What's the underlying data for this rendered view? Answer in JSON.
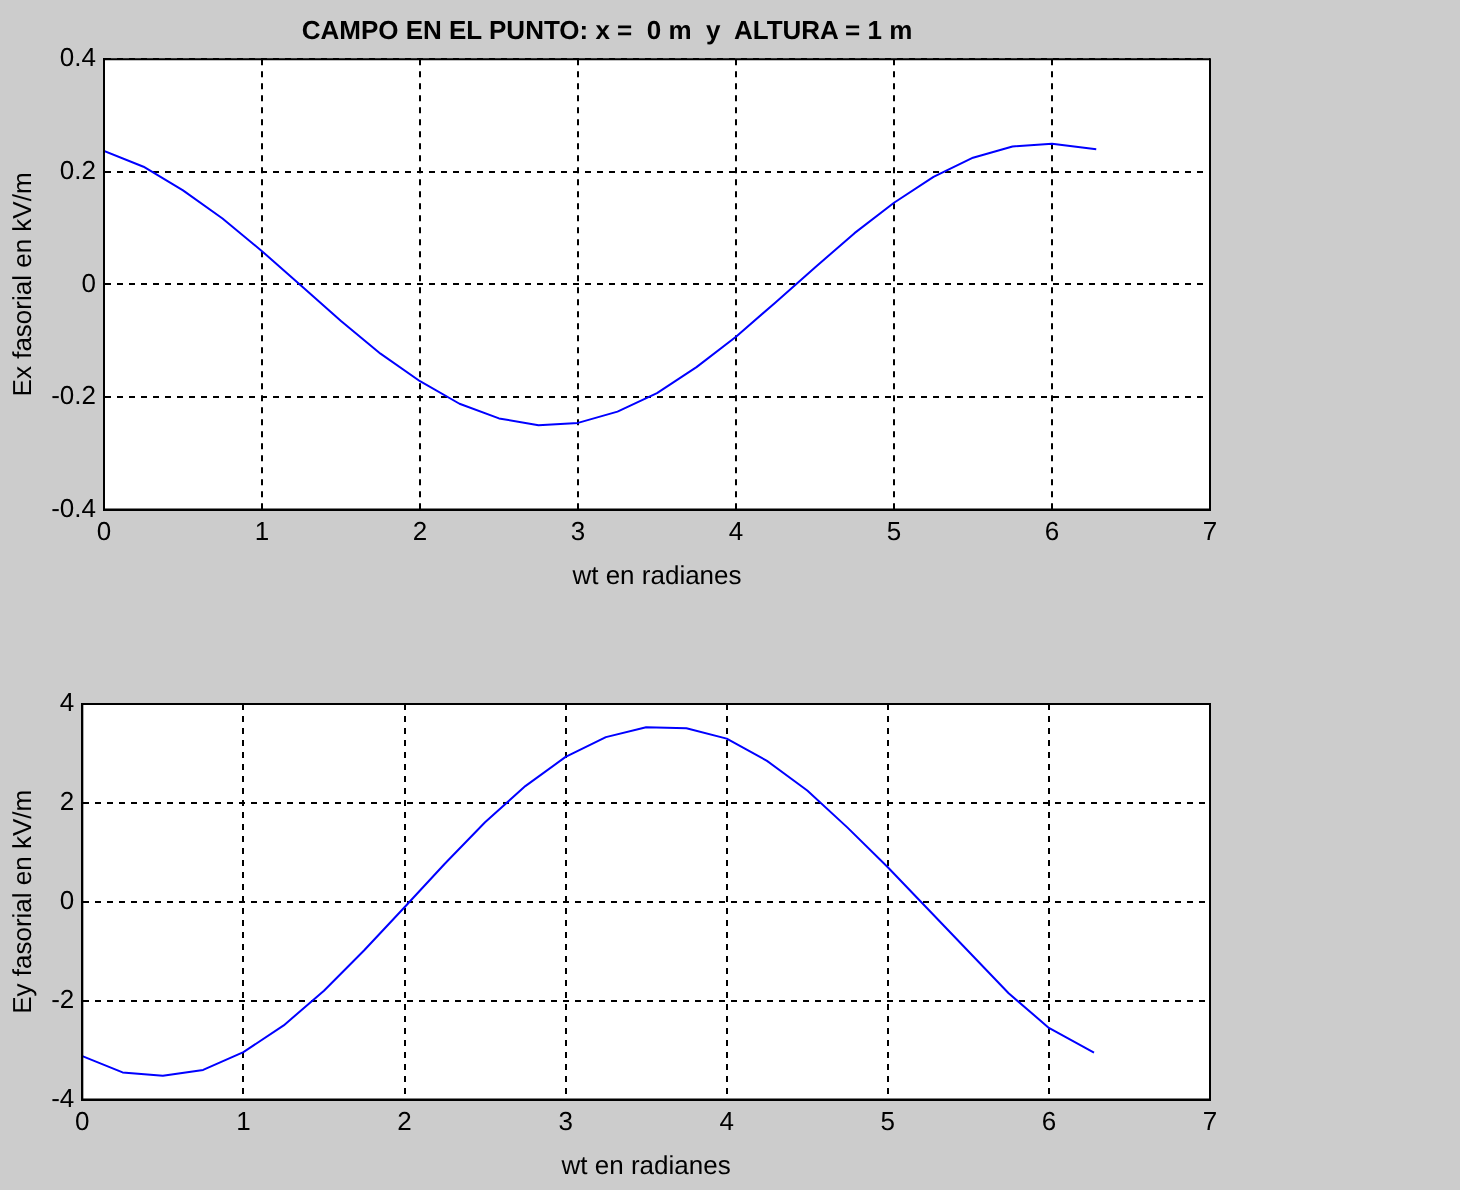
{
  "chart_data": [
    {
      "type": "line",
      "title": "CAMPO EN EL PUNTO: x =  0 m  y  ALTURA = 1 m",
      "xlabel": "wt en radianes",
      "ylabel": "Ex fasorial en kV/m",
      "xlim": [
        0,
        7
      ],
      "xticks": [
        0,
        1,
        2,
        3,
        4,
        5,
        6,
        7
      ],
      "ylim": [
        -0.4,
        0.4
      ],
      "yticks": [
        -0.4,
        -0.2,
        0,
        0.2,
        0.4
      ],
      "grid": true,
      "legend": false,
      "marker": "none",
      "line_style": "solid",
      "x": [
        0,
        0.25,
        0.5,
        0.75,
        1,
        1.25,
        1.5,
        1.75,
        2,
        2.25,
        2.5,
        2.75,
        3,
        3.25,
        3.5,
        3.75,
        4,
        4.25,
        4.5,
        4.75,
        5,
        5.25,
        5.5,
        5.75,
        6,
        6.28
      ],
      "series": [
        {
          "color": "#0000ff",
          "values": [
            0.237,
            0.209,
            0.167,
            0.117,
            0.059,
            -0.003,
            -0.065,
            -0.123,
            -0.172,
            -0.212,
            -0.238,
            -0.25,
            -0.246,
            -0.226,
            -0.193,
            -0.147,
            -0.093,
            -0.032,
            0.03,
            0.091,
            0.145,
            0.191,
            0.225,
            0.245,
            0.25,
            0.24
          ]
        }
      ]
    },
    {
      "type": "line",
      "xlabel": "wt en radianes",
      "ylabel": "Ey fasorial en kV/m",
      "xlim": [
        0,
        7
      ],
      "xticks": [
        0,
        1,
        2,
        3,
        4,
        5,
        6,
        7
      ],
      "ylim": [
        -4,
        4
      ],
      "yticks": [
        -4,
        -2,
        0,
        2,
        4
      ],
      "grid": true,
      "legend": false,
      "marker": "none",
      "line_style": "solid",
      "x": [
        0,
        0.25,
        0.5,
        0.75,
        1,
        1.25,
        1.5,
        1.75,
        2,
        2.25,
        2.5,
        2.75,
        3,
        3.25,
        3.5,
        3.75,
        4,
        4.25,
        4.5,
        4.75,
        5,
        5.25,
        5.5,
        5.75,
        6,
        6.28
      ],
      "series": [
        {
          "color": "#0000ff",
          "values": [
            -3.12,
            -3.45,
            -3.52,
            -3.4,
            -3.04,
            -2.5,
            -1.8,
            -0.98,
            -0.11,
            0.77,
            1.61,
            2.34,
            2.93,
            3.33,
            3.53,
            3.51,
            3.3,
            2.85,
            2.25,
            1.5,
            0.7,
            -0.15,
            -1.0,
            -1.85,
            -2.55,
            -3.05
          ]
        }
      ]
    }
  ]
}
